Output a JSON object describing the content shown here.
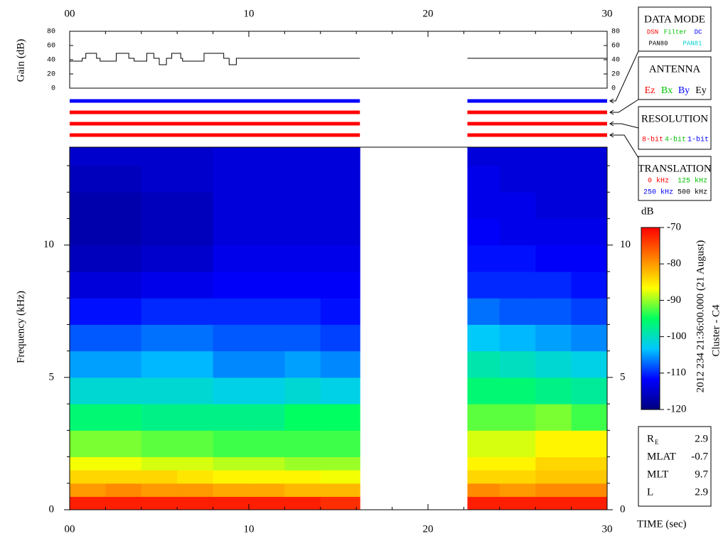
{
  "chart_data": [
    {
      "type": "line",
      "ylabel": "Gain (dB)",
      "x": [
        0,
        0.7,
        0.7,
        0.9,
        0.9,
        1.5,
        1.5,
        1.7,
        1.7,
        2.6,
        2.6,
        3.3,
        3.3,
        3.6,
        3.6,
        4.3,
        4.3,
        4.7,
        4.7,
        5.0,
        5.0,
        5.4,
        5.4,
        5.7,
        5.7,
        6.2,
        6.2,
        6.3,
        6.3,
        7.5,
        7.5,
        8.6,
        8.6,
        8.9,
        8.9,
        9.3,
        9.3,
        16.2,
        19,
        22.2,
        30
      ],
      "values": [
        38,
        38,
        42,
        42,
        49,
        49,
        42,
        42,
        38,
        38,
        49,
        49,
        42,
        42,
        38,
        38,
        49,
        49,
        42,
        42,
        33,
        33,
        42,
        42,
        49,
        49,
        42,
        42,
        38,
        38,
        49,
        49,
        42,
        42,
        33,
        33,
        42,
        42,
        null,
        42,
        42
      ],
      "color": "#000000",
      "xlim": [
        0,
        30
      ],
      "xticks": [
        {
          "value": 0,
          "label": "00"
        },
        10,
        20,
        30
      ],
      "xminorticks": [
        2,
        4,
        6,
        8,
        12,
        14,
        16,
        18,
        22,
        24,
        26,
        28
      ],
      "ylim": [
        0,
        80
      ],
      "yticks": [
        0,
        20,
        40,
        60,
        80
      ]
    },
    {
      "type": "timeline",
      "xlim": [
        0,
        30
      ],
      "bars": [
        {
          "color": "#0000ff",
          "spans": [
            [
              0,
              16.2
            ],
            [
              22.2,
              30
            ]
          ]
        },
        {
          "color": "#ff0000",
          "spans": [
            [
              0,
              16.2
            ],
            [
              22.2,
              30
            ]
          ]
        },
        {
          "color": "#ff0000",
          "spans": [
            [
              0,
              16.2
            ],
            [
              22.2,
              30
            ]
          ]
        },
        {
          "color": "#ff0000",
          "spans": [
            [
              0,
              16.2
            ],
            [
              22.2,
              30
            ]
          ]
        }
      ]
    },
    {
      "type": "heatmap",
      "ylabel": "Frequency (kHz)",
      "xlabel": "TIME (sec)",
      "xlim": [
        0,
        30
      ],
      "xticks": [
        {
          "value": 0,
          "label": "00"
        },
        10,
        20,
        30
      ],
      "xminorticks": [
        2,
        4,
        6,
        8,
        12,
        14,
        16,
        18,
        22,
        24,
        26,
        28
      ],
      "ylim": [
        0,
        13.7
      ],
      "yticks": [
        0,
        5,
        10
      ],
      "yminorticks": [
        1,
        2,
        3,
        4,
        6,
        7,
        8,
        9,
        11,
        12,
        13
      ],
      "xbins": [
        0,
        2,
        4,
        6,
        8,
        10,
        12,
        14,
        16.2,
        22.2,
        24,
        26,
        28,
        30
      ],
      "ybins": [
        0,
        0.5,
        1,
        1.5,
        2,
        3,
        4,
        5,
        6,
        7,
        8,
        9,
        10,
        11,
        12,
        13,
        13.7
      ],
      "z": [
        [
          -72,
          -72,
          -72,
          -72,
          -72,
          -72,
          -72,
          -73,
          null,
          -72,
          -72,
          -72,
          -72
        ],
        [
          -80,
          -79,
          -80,
          -80,
          -81,
          -81,
          -82,
          -82,
          null,
          -79,
          -80,
          -79,
          -79
        ],
        [
          -84,
          -84,
          -84,
          -85,
          -86,
          -86,
          -86,
          -87,
          null,
          -84,
          -84,
          -83,
          -83
        ],
        [
          -87,
          -87,
          -88,
          -88,
          -89,
          -89,
          -90,
          -90,
          null,
          -86,
          -86,
          -84,
          -84
        ],
        [
          -91,
          -91,
          -92,
          -92,
          -93,
          -93,
          -93,
          -93,
          null,
          -88,
          -88,
          -86,
          -86
        ],
        [
          -96,
          -96,
          -97,
          -97,
          -97,
          -97,
          -95,
          -95,
          null,
          -92,
          -92,
          -91,
          -93
        ],
        [
          -101,
          -101,
          -101,
          -101,
          -102,
          -102,
          -101,
          -102,
          null,
          -96,
          -96,
          -97,
          -98
        ],
        [
          -105,
          -105,
          -104,
          -104,
          -106,
          -106,
          -105,
          -106,
          null,
          -99,
          -100,
          -101,
          -102
        ],
        [
          -108,
          -108,
          -107,
          -107,
          -108,
          -108,
          -108,
          -109,
          null,
          -103,
          -104,
          -105,
          -106
        ],
        [
          -111,
          -111,
          -110,
          -110,
          -110,
          -110,
          -110,
          -111,
          null,
          -107,
          -108,
          -108,
          -109
        ],
        [
          -114,
          -114,
          -113,
          -113,
          -112,
          -112,
          -112,
          -112,
          null,
          -110,
          -110,
          -110,
          -111
        ],
        [
          -116,
          -116,
          -115,
          -115,
          -113,
          -113,
          -113,
          -113,
          null,
          -111,
          -111,
          -112,
          -112
        ],
        [
          -117,
          -117,
          -116,
          -116,
          -114,
          -114,
          -114,
          -114,
          null,
          -112,
          -113,
          -113,
          -113
        ],
        [
          -117,
          -117,
          -116,
          -116,
          -114,
          -114,
          -114,
          -114,
          null,
          -113,
          -113,
          -114,
          -114
        ],
        [
          -116,
          -116,
          -115,
          -115,
          -114,
          -114,
          -114,
          -114,
          null,
          -113,
          -114,
          -114,
          -114
        ],
        [
          -115,
          -115,
          -115,
          -115,
          -114,
          -114,
          -114,
          -114,
          null,
          -114,
          -114,
          -114,
          -114
        ]
      ],
      "colormap": [
        "#00007f",
        "#0000ff",
        "#00c8ff",
        "#00ff60",
        "#ffff00",
        "#ff8000",
        "#ff0000"
      ],
      "clabel": "dB",
      "clim": [
        -120,
        -70
      ],
      "cticks": [
        -70,
        -80,
        -90,
        -100,
        -110,
        -120
      ]
    }
  ],
  "legend_boxes": [
    {
      "title": "DATA MODE",
      "rows": [
        [
          {
            "text": "DSN",
            "color": "#ff0000"
          },
          {
            "text": "Filter",
            "color": "#00c000"
          },
          {
            "text": "DC",
            "color": "#0000ff"
          }
        ],
        [
          {
            "text": "PAN80",
            "color": "#000000"
          },
          {
            "text": "PAN81",
            "color": "#00d0d0"
          }
        ]
      ]
    },
    {
      "title": "ANTENNA",
      "rows": [
        [
          {
            "text": "Ez",
            "color": "#ff0000"
          },
          {
            "text": "Bx",
            "color": "#00c000"
          },
          {
            "text": "By",
            "color": "#0000ff"
          },
          {
            "text": "Ey",
            "color": "#000000"
          }
        ]
      ]
    },
    {
      "title": "RESOLUTION",
      "rows": [
        [
          {
            "text": "8-bit",
            "color": "#ff0000"
          },
          {
            "text": "4-bit",
            "color": "#00c000"
          },
          {
            "text": "1-bit",
            "color": "#0000ff"
          }
        ]
      ]
    },
    {
      "title": "TRANSLATION",
      "rows": [
        [
          {
            "text": "0 kHz",
            "color": "#ff0000"
          },
          {
            "text": "125 kHz",
            "color": "#00c000"
          }
        ],
        [
          {
            "text": "250 kHz",
            "color": "#0000ff"
          },
          {
            "text": "500 kHz",
            "color": "#000000"
          }
        ]
      ]
    }
  ],
  "annotation": {
    "date": "2012 234 21:36:00.000 (21 August)",
    "spacecraft": "Cluster - C4"
  },
  "orbit": {
    "rows": [
      {
        "label": "R",
        "sub": "E",
        "value": 2.9
      },
      {
        "label": "MLAT",
        "value": -0.7
      },
      {
        "label": "MLT",
        "value": 9.7
      },
      {
        "label": "L",
        "value": 2.9
      }
    ]
  }
}
